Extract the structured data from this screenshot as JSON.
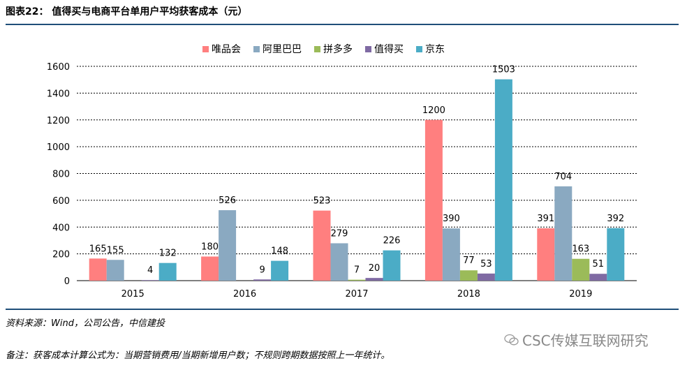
{
  "header": {
    "title": "图表22：  值得买与电商平台单用户平均获客成本（元）"
  },
  "footer": {
    "source": "资料来源：Wind，公司公告，中信建投",
    "note": "备注：获客成本计算公式为：当期营销费用/当期新增用户数；不规则跨期数据按照上一年统计。",
    "watermark": "CSC传媒互联网研究"
  },
  "colors": {
    "唯品会": "#ff7f7f",
    "阿里巴巴": "#8aa9c1",
    "拼多多": "#9bbb59",
    "值得买": "#7f6aa3",
    "京东": "#4bacc6",
    "rule": "#1f4e79"
  },
  "chart_data": {
    "type": "bar",
    "title": "值得买与电商平台单用户平均获客成本（元）",
    "categories": [
      "2015",
      "2016",
      "2017",
      "2018",
      "2019"
    ],
    "series": [
      {
        "name": "唯品会",
        "values": [
          165,
          180,
          523,
          1200,
          391
        ]
      },
      {
        "name": "阿里巴巴",
        "values": [
          155,
          526,
          279,
          390,
          704
        ]
      },
      {
        "name": "拼多多",
        "values": [
          null,
          null,
          7,
          77,
          163
        ]
      },
      {
        "name": "值得买",
        "values": [
          4,
          9,
          20,
          53,
          51
        ]
      },
      {
        "name": "京东",
        "values": [
          132,
          148,
          226,
          1503,
          392
        ]
      }
    ],
    "ylim": [
      0,
      1600
    ],
    "yticks": [
      0,
      200,
      400,
      600,
      800,
      1000,
      1200,
      1400,
      1600
    ],
    "grid": true,
    "legend": "top",
    "xlabel": "",
    "ylabel": ""
  }
}
